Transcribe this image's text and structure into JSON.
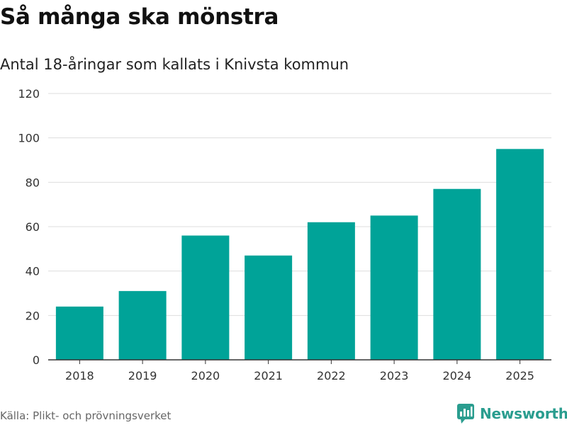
{
  "title": "Så många ska mönstra",
  "subtitle": "Antal 18-åringar som kallats i Knivsta kommun",
  "source": "Källa: Plikt- och prövningsverket",
  "brand": {
    "name": "Newsworthy",
    "icon": "newsworthy-logo-icon",
    "color": "#2a9d8f"
  },
  "colors": {
    "bar": "#00a398",
    "grid": "#dddddd",
    "axis": "#333333"
  },
  "chart_data": {
    "type": "bar",
    "title": "Så många ska mönstra",
    "subtitle": "Antal 18-åringar som kallats i Knivsta kommun",
    "xlabel": "",
    "ylabel": "",
    "categories": [
      "2018",
      "2019",
      "2020",
      "2021",
      "2022",
      "2023",
      "2024",
      "2025"
    ],
    "values": [
      24,
      31,
      56,
      47,
      62,
      65,
      77,
      95
    ],
    "ylim": [
      0,
      120
    ],
    "yticks": [
      0,
      20,
      40,
      60,
      80,
      100,
      120
    ],
    "grid": true,
    "legend": "none"
  }
}
